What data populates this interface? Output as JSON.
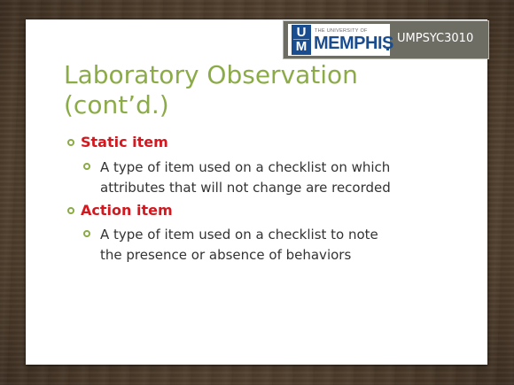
{
  "header": {
    "logo_small_text": "THE UNIVERSITY OF",
    "logo_big_text": "MEMPHIS",
    "logo_mark_top": "U",
    "logo_mark_bottom": "M",
    "course_code": "UMPSYC3010"
  },
  "slide": {
    "title": "Laboratory Observation (cont’d.)",
    "bullets": [
      {
        "label": "Static item",
        "sub": {
          "line1": "A type of item used on a checklist on which",
          "line2": "attributes that will not change are recorded"
        }
      },
      {
        "label": "Action item",
        "sub": {
          "line1": "A type of item used on a checklist to note",
          "line2": "the presence or absence of behaviors"
        }
      }
    ]
  },
  "colors": {
    "title_green": "#8bab47",
    "bullet_red": "#d3191f",
    "body_text": "#333333",
    "header_gray": "#6d6d64",
    "memphis_blue": "#1a4d8f",
    "wood_brown": "#4d3c2b"
  }
}
